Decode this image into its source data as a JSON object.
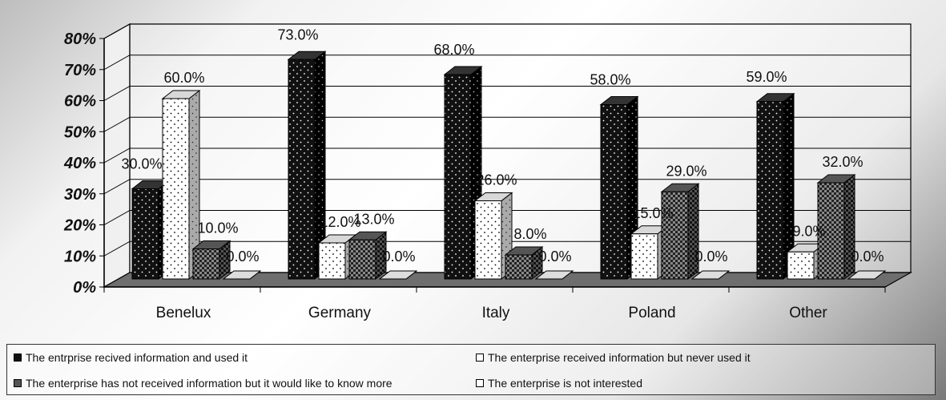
{
  "chart_data": {
    "type": "bar",
    "title": "",
    "xlabel": "",
    "ylabel": "",
    "ylim": [
      0,
      80
    ],
    "yticks": [
      "0%",
      "10%",
      "20%",
      "30%",
      "40%",
      "50%",
      "60%",
      "70%",
      "80%"
    ],
    "categories": [
      "Benelux",
      "Germany",
      "Italy",
      "Poland",
      "Other"
    ],
    "series": [
      {
        "name": "The entrprise recived information and used it",
        "values": [
          30.0,
          73.0,
          68.0,
          58.0,
          59.0
        ],
        "labels": [
          "30.0%",
          "73.0%",
          "68.0%",
          "58.0%",
          "59.0%"
        ]
      },
      {
        "name": "The enterprise received information but never used it",
        "values": [
          60.0,
          12.0,
          26.0,
          15.0,
          9.0
        ],
        "labels": [
          "60.0%",
          "12.0%",
          "26.0%",
          "15.0%",
          "9.0%"
        ]
      },
      {
        "name": "The enterprise has not received information but it would like to know more",
        "values": [
          10.0,
          13.0,
          8.0,
          29.0,
          32.0
        ],
        "labels": [
          "10.0%",
          "13.0%",
          "8.0%",
          "29.0%",
          "32.0%"
        ]
      },
      {
        "name": "The enterprise is not interested",
        "values": [
          0.0,
          0.0,
          0.0,
          0.0,
          0.0
        ],
        "labels": [
          "0.0%",
          "0.0%",
          "0.0%",
          "0.0%",
          "0.0%"
        ]
      }
    ],
    "grid": true,
    "legend_position": "bottom",
    "style": "3d-clustered-column"
  }
}
